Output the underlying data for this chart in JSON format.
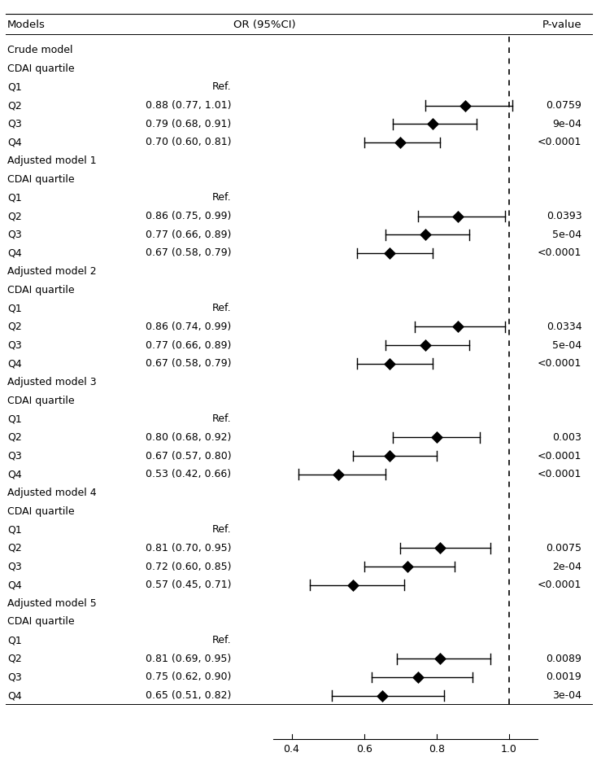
{
  "models": [
    {
      "model_name": "Crude model",
      "rows": [
        {
          "label": "CDAI quartile",
          "type": "subheader"
        },
        {
          "label": "Q1",
          "type": "ref",
          "ci_text": "Ref.",
          "or": null,
          "lo": null,
          "hi": null,
          "pval": ""
        },
        {
          "label": "Q2",
          "type": "data",
          "ci_text": "0.88 (0.77, 1.01)",
          "or": 0.88,
          "lo": 0.77,
          "hi": 1.01,
          "pval": "0.0759"
        },
        {
          "label": "Q3",
          "type": "data",
          "ci_text": "0.79 (0.68, 0.91)",
          "or": 0.79,
          "lo": 0.68,
          "hi": 0.91,
          "pval": "9e-04"
        },
        {
          "label": "Q4",
          "type": "data",
          "ci_text": "0.70 (0.60, 0.81)",
          "or": 0.7,
          "lo": 0.6,
          "hi": 0.81,
          "pval": "<0.0001"
        }
      ]
    },
    {
      "model_name": "Adjusted model 1",
      "rows": [
        {
          "label": "CDAI quartile",
          "type": "subheader"
        },
        {
          "label": "Q1",
          "type": "ref",
          "ci_text": "Ref.",
          "or": null,
          "lo": null,
          "hi": null,
          "pval": ""
        },
        {
          "label": "Q2",
          "type": "data",
          "ci_text": "0.86 (0.75, 0.99)",
          "or": 0.86,
          "lo": 0.75,
          "hi": 0.99,
          "pval": "0.0393"
        },
        {
          "label": "Q3",
          "type": "data",
          "ci_text": "0.77 (0.66, 0.89)",
          "or": 0.77,
          "lo": 0.66,
          "hi": 0.89,
          "pval": "5e-04"
        },
        {
          "label": "Q4",
          "type": "data",
          "ci_text": "0.67 (0.58, 0.79)",
          "or": 0.67,
          "lo": 0.58,
          "hi": 0.79,
          "pval": "<0.0001"
        }
      ]
    },
    {
      "model_name": "Adjusted model 2",
      "rows": [
        {
          "label": "CDAI quartile",
          "type": "subheader"
        },
        {
          "label": "Q1",
          "type": "ref",
          "ci_text": "Ref.",
          "or": null,
          "lo": null,
          "hi": null,
          "pval": ""
        },
        {
          "label": "Q2",
          "type": "data",
          "ci_text": "0.86 (0.74, 0.99)",
          "or": 0.86,
          "lo": 0.74,
          "hi": 0.99,
          "pval": "0.0334"
        },
        {
          "label": "Q3",
          "type": "data",
          "ci_text": "0.77 (0.66, 0.89)",
          "or": 0.77,
          "lo": 0.66,
          "hi": 0.89,
          "pval": "5e-04"
        },
        {
          "label": "Q4",
          "type": "data",
          "ci_text": "0.67 (0.58, 0.79)",
          "or": 0.67,
          "lo": 0.58,
          "hi": 0.79,
          "pval": "<0.0001"
        }
      ]
    },
    {
      "model_name": "Adjusted model 3",
      "rows": [
        {
          "label": "CDAI quartile",
          "type": "subheader"
        },
        {
          "label": "Q1",
          "type": "ref",
          "ci_text": "Ref.",
          "or": null,
          "lo": null,
          "hi": null,
          "pval": ""
        },
        {
          "label": "Q2",
          "type": "data",
          "ci_text": "0.80 (0.68, 0.92)",
          "or": 0.8,
          "lo": 0.68,
          "hi": 0.92,
          "pval": "0.003"
        },
        {
          "label": "Q3",
          "type": "data",
          "ci_text": "0.67 (0.57, 0.80)",
          "or": 0.67,
          "lo": 0.57,
          "hi": 0.8,
          "pval": "<0.0001"
        },
        {
          "label": "Q4",
          "type": "data",
          "ci_text": "0.53 (0.42, 0.66)",
          "or": 0.53,
          "lo": 0.42,
          "hi": 0.66,
          "pval": "<0.0001"
        }
      ]
    },
    {
      "model_name": "Adjusted model 4",
      "rows": [
        {
          "label": "CDAI quartile",
          "type": "subheader"
        },
        {
          "label": "Q1",
          "type": "ref",
          "ci_text": "Ref.",
          "or": null,
          "lo": null,
          "hi": null,
          "pval": ""
        },
        {
          "label": "Q2",
          "type": "data",
          "ci_text": "0.81 (0.70, 0.95)",
          "or": 0.81,
          "lo": 0.7,
          "hi": 0.95,
          "pval": "0.0075"
        },
        {
          "label": "Q3",
          "type": "data",
          "ci_text": "0.72 (0.60, 0.85)",
          "or": 0.72,
          "lo": 0.6,
          "hi": 0.85,
          "pval": "2e-04"
        },
        {
          "label": "Q4",
          "type": "data",
          "ci_text": "0.57 (0.45, 0.71)",
          "or": 0.57,
          "lo": 0.45,
          "hi": 0.71,
          "pval": "<0.0001"
        }
      ]
    },
    {
      "model_name": "Adjusted model 5",
      "rows": [
        {
          "label": "CDAI quartile",
          "type": "subheader"
        },
        {
          "label": "Q1",
          "type": "ref",
          "ci_text": "Ref.",
          "or": null,
          "lo": null,
          "hi": null,
          "pval": ""
        },
        {
          "label": "Q2",
          "type": "data",
          "ci_text": "0.81 (0.69, 0.95)",
          "or": 0.81,
          "lo": 0.69,
          "hi": 0.95,
          "pval": "0.0089"
        },
        {
          "label": "Q3",
          "type": "data",
          "ci_text": "0.75 (0.62, 0.90)",
          "or": 0.75,
          "lo": 0.62,
          "hi": 0.9,
          "pval": "0.0019"
        },
        {
          "label": "Q4",
          "type": "data",
          "ci_text": "0.65 (0.51, 0.82)",
          "or": 0.65,
          "lo": 0.51,
          "hi": 0.82,
          "pval": "3e-04"
        }
      ]
    }
  ],
  "xmin": 0.35,
  "xmax": 1.08,
  "xticks": [
    0.4,
    0.6,
    0.8,
    1.0
  ],
  "xticklabels": [
    "0.4",
    "0.6",
    "0.8",
    "1.0"
  ],
  "ref_line": 1.0,
  "header_models": "Models",
  "header_ci": "OR (95%CI)",
  "header_pval": "P-value",
  "marker_size": 7,
  "marker_color": "black",
  "line_color": "black",
  "font_size": 9,
  "header_font_size": 9.5,
  "background_color": "white"
}
